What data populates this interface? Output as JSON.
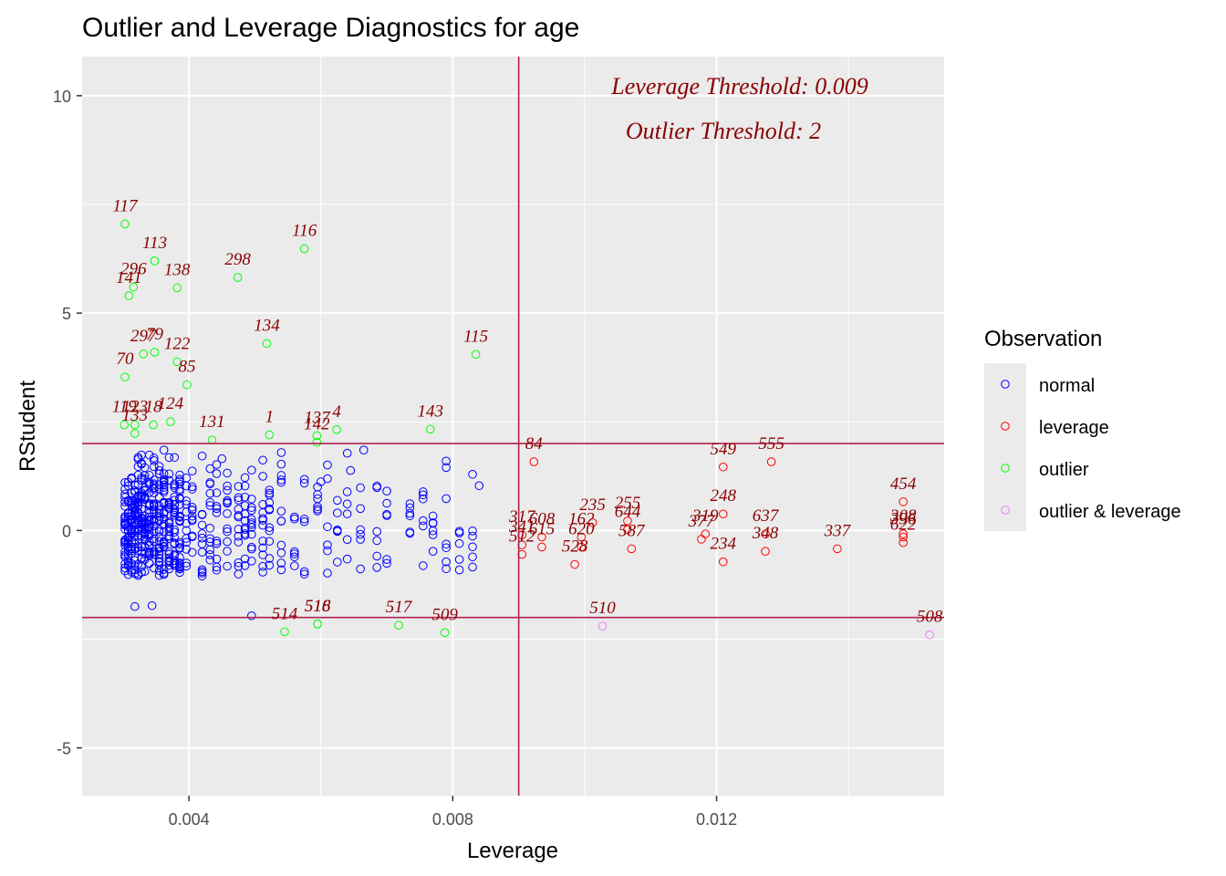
{
  "chart_data": {
    "type": "scatter",
    "title": "Outlier and Leverage Diagnostics for age",
    "xlabel": "Leverage",
    "ylabel": "RStudent",
    "xlim": [
      0.00238,
      0.01545
    ],
    "ylim": [
      -6.1,
      10.9
    ],
    "x_ticks": [
      0.004,
      0.008,
      0.012
    ],
    "x_tick_labels": [
      "0.004",
      "0.008",
      "0.012"
    ],
    "y_ticks": [
      -5,
      0,
      5,
      10
    ],
    "y_tick_labels": [
      "-5",
      "0",
      "5",
      "10"
    ],
    "grid": true,
    "leverage_threshold": 0.009,
    "outlier_threshold": 2,
    "annotations": [
      "Leverage Threshold: 0.009",
      "Outlier Threshold: 2"
    ],
    "legend": {
      "title": "Observation",
      "position": "right",
      "entries": [
        {
          "name": "normal",
          "color": "#0000ff"
        },
        {
          "name": "leverage",
          "color": "#ff0000"
        },
        {
          "name": "outlier",
          "color": "#00ff00"
        },
        {
          "name": "outlier & leverage",
          "color": "#ee82ee"
        }
      ]
    },
    "colors": {
      "normal": "#0000ff",
      "leverage": "#ff0000",
      "outlier": "#00ff00",
      "outlier & leverage": "#ee82ee",
      "threshold_line": "#b22150",
      "label": "#8b0000"
    },
    "labeled_points": [
      {
        "label": "117",
        "x": 0.00303,
        "y": 7.05,
        "group": "outlier"
      },
      {
        "label": "113",
        "x": 0.00348,
        "y": 6.2,
        "group": "outlier"
      },
      {
        "label": "296",
        "x": 0.00316,
        "y": 5.6,
        "group": "outlier"
      },
      {
        "label": "141",
        "x": 0.00309,
        "y": 5.4,
        "group": "outlier"
      },
      {
        "label": "138",
        "x": 0.00382,
        "y": 5.58,
        "group": "outlier"
      },
      {
        "label": "298",
        "x": 0.00474,
        "y": 5.82,
        "group": "outlier"
      },
      {
        "label": "116",
        "x": 0.00575,
        "y": 6.48,
        "group": "outlier"
      },
      {
        "label": "134",
        "x": 0.00518,
        "y": 4.3,
        "group": "outlier"
      },
      {
        "label": "115",
        "x": 0.00835,
        "y": 4.05,
        "group": "outlier"
      },
      {
        "label": "297",
        "x": 0.00331,
        "y": 4.06,
        "group": "outlier"
      },
      {
        "label": "79",
        "x": 0.00348,
        "y": 4.1,
        "group": "outlier"
      },
      {
        "label": "122",
        "x": 0.00382,
        "y": 3.88,
        "group": "outlier"
      },
      {
        "label": "70",
        "x": 0.00303,
        "y": 3.53,
        "group": "outlier"
      },
      {
        "label": "85",
        "x": 0.00397,
        "y": 3.35,
        "group": "outlier"
      },
      {
        "label": "119",
        "x": 0.00302,
        "y": 2.43,
        "group": "outlier"
      },
      {
        "label": "123",
        "x": 0.00318,
        "y": 2.43,
        "group": "outlier"
      },
      {
        "label": "18",
        "x": 0.00346,
        "y": 2.43,
        "group": "outlier"
      },
      {
        "label": "124",
        "x": 0.00372,
        "y": 2.5,
        "group": "outlier"
      },
      {
        "label": "133",
        "x": 0.00318,
        "y": 2.23,
        "group": "outlier"
      },
      {
        "label": "131",
        "x": 0.00435,
        "y": 2.08,
        "group": "outlier"
      },
      {
        "label": "1",
        "x": 0.00522,
        "y": 2.2,
        "group": "outlier"
      },
      {
        "label": "137",
        "x": 0.00594,
        "y": 2.18,
        "group": "outlier"
      },
      {
        "label": "4",
        "x": 0.00624,
        "y": 2.32,
        "group": "outlier"
      },
      {
        "label": "142",
        "x": 0.00594,
        "y": 2.03,
        "group": "outlier"
      },
      {
        "label": "143",
        "x": 0.00766,
        "y": 2.33,
        "group": "outlier"
      },
      {
        "label": "84",
        "x": 0.00923,
        "y": 1.58,
        "group": "leverage"
      },
      {
        "label": "549",
        "x": 0.0121,
        "y": 1.46,
        "group": "leverage"
      },
      {
        "label": "555",
        "x": 0.01283,
        "y": 1.58,
        "group": "leverage"
      },
      {
        "label": "454",
        "x": 0.01483,
        "y": 0.66,
        "group": "leverage"
      },
      {
        "label": "248",
        "x": 0.0121,
        "y": 0.38,
        "group": "leverage"
      },
      {
        "label": "235",
        "x": 0.01012,
        "y": 0.18,
        "group": "leverage"
      },
      {
        "label": "255",
        "x": 0.01065,
        "y": 0.22,
        "group": "leverage"
      },
      {
        "label": "644",
        "x": 0.01065,
        "y": 0.02,
        "group": "leverage"
      },
      {
        "label": "319",
        "x": 0.01183,
        "y": -0.08,
        "group": "leverage"
      },
      {
        "label": "637",
        "x": 0.01274,
        "y": -0.08,
        "group": "leverage"
      },
      {
        "label": "308",
        "x": 0.01483,
        "y": -0.08,
        "group": "leverage"
      },
      {
        "label": "317",
        "x": 0.00905,
        "y": -0.1,
        "group": "leverage"
      },
      {
        "label": "608",
        "x": 0.00935,
        "y": -0.15,
        "group": "leverage"
      },
      {
        "label": "162",
        "x": 0.00995,
        "y": -0.15,
        "group": "leverage"
      },
      {
        "label": "377",
        "x": 0.01177,
        "y": -0.2,
        "group": "leverage"
      },
      {
        "label": "587",
        "x": 0.01071,
        "y": -0.42,
        "group": "leverage"
      },
      {
        "label": "348",
        "x": 0.01274,
        "y": -0.48,
        "group": "leverage"
      },
      {
        "label": "337",
        "x": 0.01383,
        "y": -0.42,
        "group": "leverage"
      },
      {
        "label": "622",
        "x": 0.01483,
        "y": -0.28,
        "group": "leverage"
      },
      {
        "label": "396",
        "x": 0.01483,
        "y": -0.15,
        "group": "leverage"
      },
      {
        "label": "341",
        "x": 0.00905,
        "y": -0.33,
        "group": "leverage"
      },
      {
        "label": "615",
        "x": 0.00935,
        "y": -0.38,
        "group": "leverage"
      },
      {
        "label": "620",
        "x": 0.00995,
        "y": -0.38,
        "group": "leverage"
      },
      {
        "label": "512",
        "x": 0.00905,
        "y": -0.55,
        "group": "leverage"
      },
      {
        "label": "528",
        "x": 0.00985,
        "y": -0.78,
        "group": "leverage"
      },
      {
        "label": "234",
        "x": 0.0121,
        "y": -0.72,
        "group": "leverage"
      },
      {
        "label": "510",
        "x": 0.01027,
        "y": -2.2,
        "group": "outlier & leverage"
      },
      {
        "label": "508",
        "x": 0.01523,
        "y": -2.4,
        "group": "outlier & leverage"
      },
      {
        "label": "514",
        "x": 0.00545,
        "y": -2.33,
        "group": "outlier"
      },
      {
        "label": "516",
        "x": 0.00595,
        "y": -2.15,
        "group": "outlier"
      },
      {
        "label": "518",
        "x": 0.00595,
        "y": -2.15,
        "group": "outlier"
      },
      {
        "label": "517",
        "x": 0.00718,
        "y": -2.18,
        "group": "outlier"
      },
      {
        "label": "509",
        "x": 0.00788,
        "y": -2.35,
        "group": "outlier"
      }
    ],
    "normal_points_hint": "approx. 480 unlabeled normal observations with leverage 0.0030–0.0084 and RStudent between -2 and 2"
  }
}
